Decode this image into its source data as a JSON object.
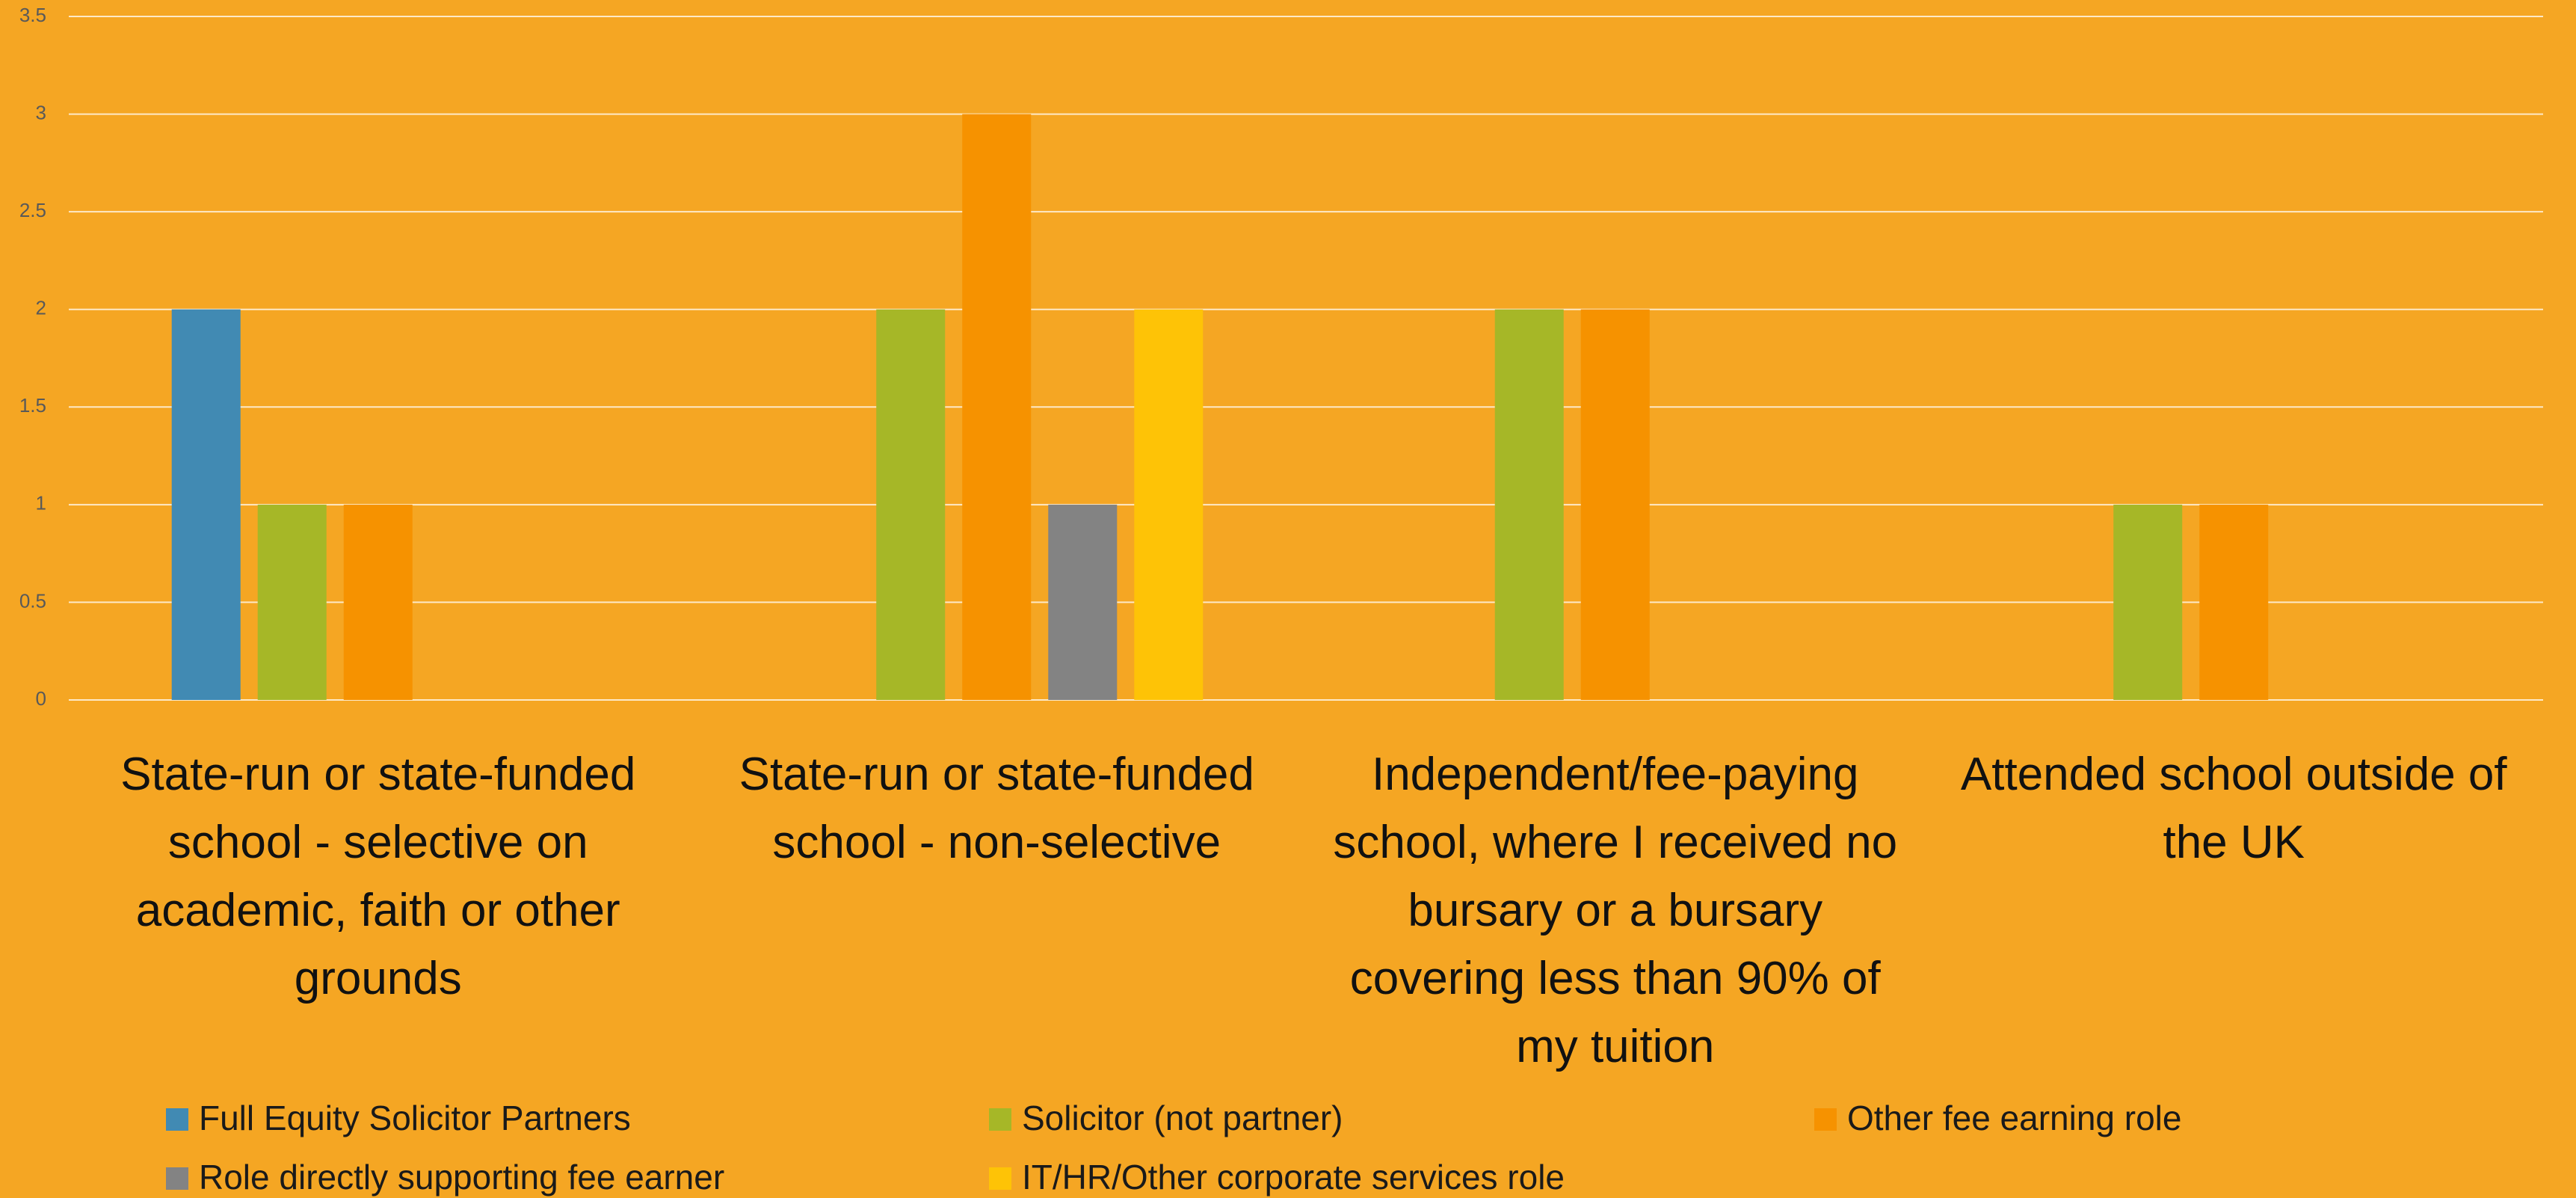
{
  "chart_data": {
    "type": "bar",
    "categories": [
      "State-run or state-funded school - selective on academic, faith or other grounds",
      "State-run or state-funded school - non-selective",
      "Independent/fee-paying school, where I received no bursary or a bursary covering less than 90% of my tuition",
      "Attended school outside of the UK"
    ],
    "series": [
      {
        "name": "Full Equity Solicitor Partners",
        "color": "#418ab3",
        "values": [
          2,
          null,
          null,
          null
        ]
      },
      {
        "name": "Solicitor (not partner)",
        "color": "#a6b727",
        "values": [
          1,
          2,
          2,
          1
        ]
      },
      {
        "name": "Other fee earning role",
        "color": "#f69200",
        "values": [
          1,
          3,
          2,
          1
        ]
      },
      {
        "name": "Role directly supporting fee earner",
        "color": "#838383",
        "values": [
          null,
          1,
          null,
          null
        ]
      },
      {
        "name": "IT/HR/Other corporate services role",
        "color": "#fec306",
        "values": [
          null,
          2,
          null,
          null
        ]
      }
    ],
    "ylim": [
      0,
      3.5
    ],
    "yticks": [
      0,
      0.5,
      1,
      1.5,
      2,
      2.5,
      3,
      3.5
    ],
    "grid": true,
    "legend": "bottom",
    "background": "#f5a623"
  }
}
